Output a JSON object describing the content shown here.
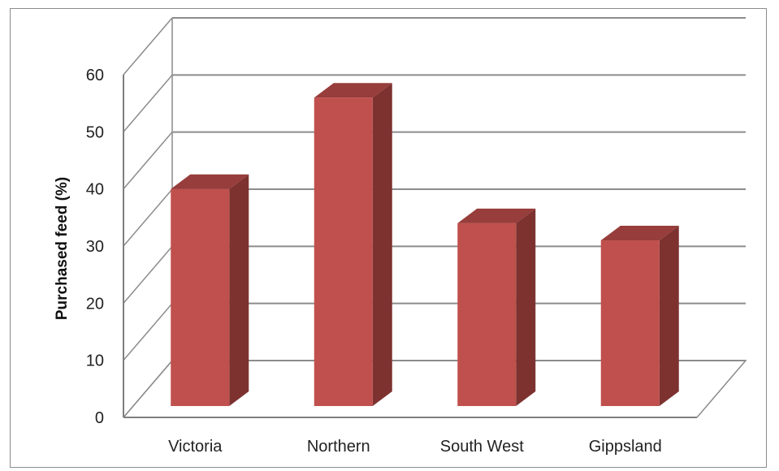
{
  "chart_data": {
    "type": "bar",
    "style": "3d-column",
    "categories": [
      "Victoria",
      "Northern",
      "South West",
      "Gippsland"
    ],
    "values": [
      38,
      54,
      32,
      29
    ],
    "title": "",
    "xlabel": "",
    "ylabel": "Purchased feed (%)",
    "ylim": [
      0,
      60
    ],
    "yticks": [
      0,
      10,
      20,
      30,
      40,
      50,
      60
    ],
    "ytick_labels": [
      "0",
      "10",
      "20",
      "30",
      "40",
      "50",
      "60"
    ],
    "grid": true,
    "legend": "none",
    "colors": {
      "bar_front": "#c0504d",
      "bar_side": "#7d3230",
      "bar_top": "#973d3b",
      "gridline": "#8c8c8c",
      "axis": "#7f7f7f"
    }
  }
}
